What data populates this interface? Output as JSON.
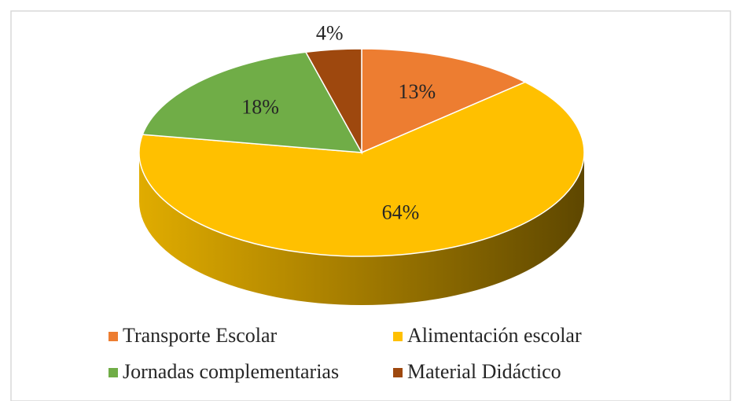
{
  "chart_data": {
    "type": "pie",
    "categories": [
      "Transporte Escolar",
      "Alimentación escolar",
      "Jornadas complementarias",
      "Material Didáctico"
    ],
    "values": [
      13,
      64,
      18,
      4
    ],
    "value_labels": [
      "13%",
      "64%",
      "18%",
      "4%"
    ],
    "colors": [
      "#ED7D31",
      "#FFC000",
      "#70AD47",
      "#9E480E"
    ],
    "legend": "bottom"
  }
}
